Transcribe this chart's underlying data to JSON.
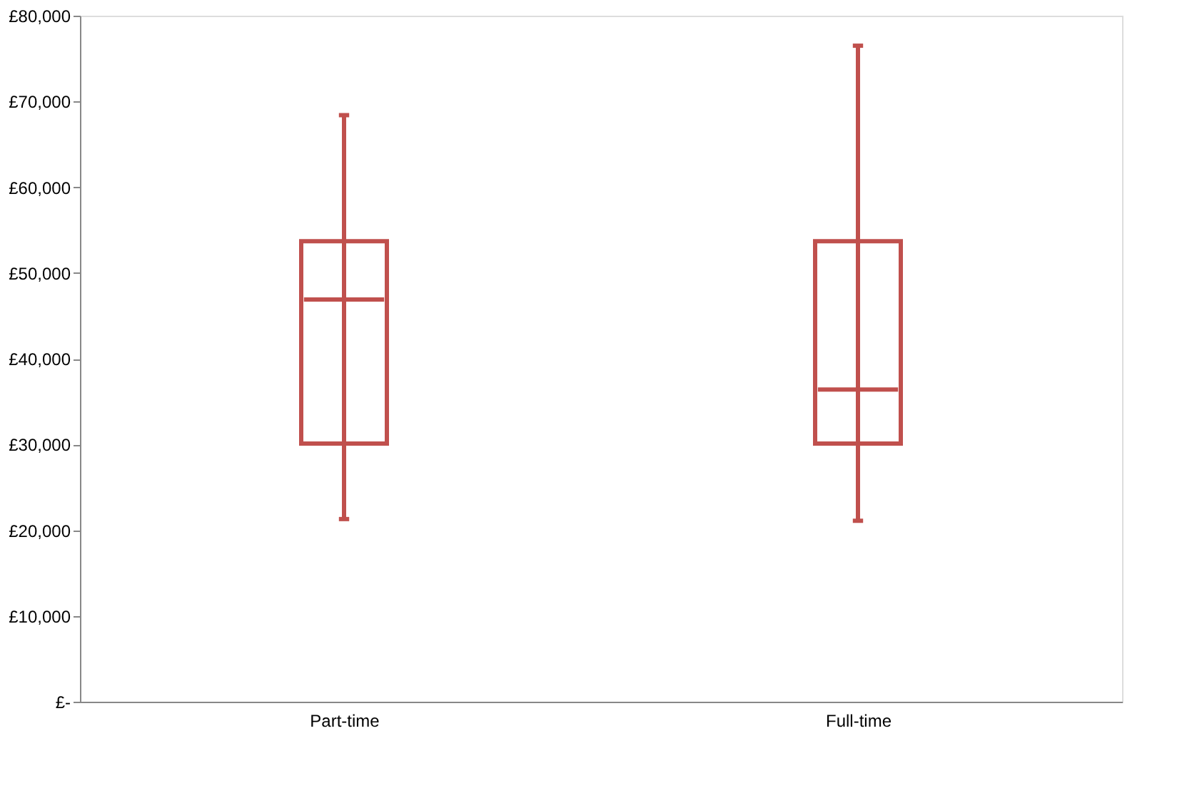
{
  "chart_data": {
    "type": "box",
    "categories": [
      "Part-time",
      "Full-time"
    ],
    "series": [
      {
        "color": "#c0504d",
        "boxes": [
          {
            "low": 21300,
            "q1": 30100,
            "median": 46900,
            "q3": 53700,
            "high": 68400
          },
          {
            "low": 21100,
            "q1": 30100,
            "median": 36400,
            "q3": 53700,
            "high": 76500
          }
        ]
      }
    ],
    "ylim": [
      0,
      80000
    ],
    "yticks": [
      {
        "value": 0,
        "label": "£-"
      },
      {
        "value": 10000,
        "label": "£10,000"
      },
      {
        "value": 20000,
        "label": "£20,000"
      },
      {
        "value": 30000,
        "label": "£30,000"
      },
      {
        "value": 40000,
        "label": "£40,000"
      },
      {
        "value": 50000,
        "label": "£50,000"
      },
      {
        "value": 60000,
        "label": "£60,000"
      },
      {
        "value": 70000,
        "label": "£70,000"
      },
      {
        "value": 80000,
        "label": "£80,000"
      }
    ],
    "grid": false
  }
}
